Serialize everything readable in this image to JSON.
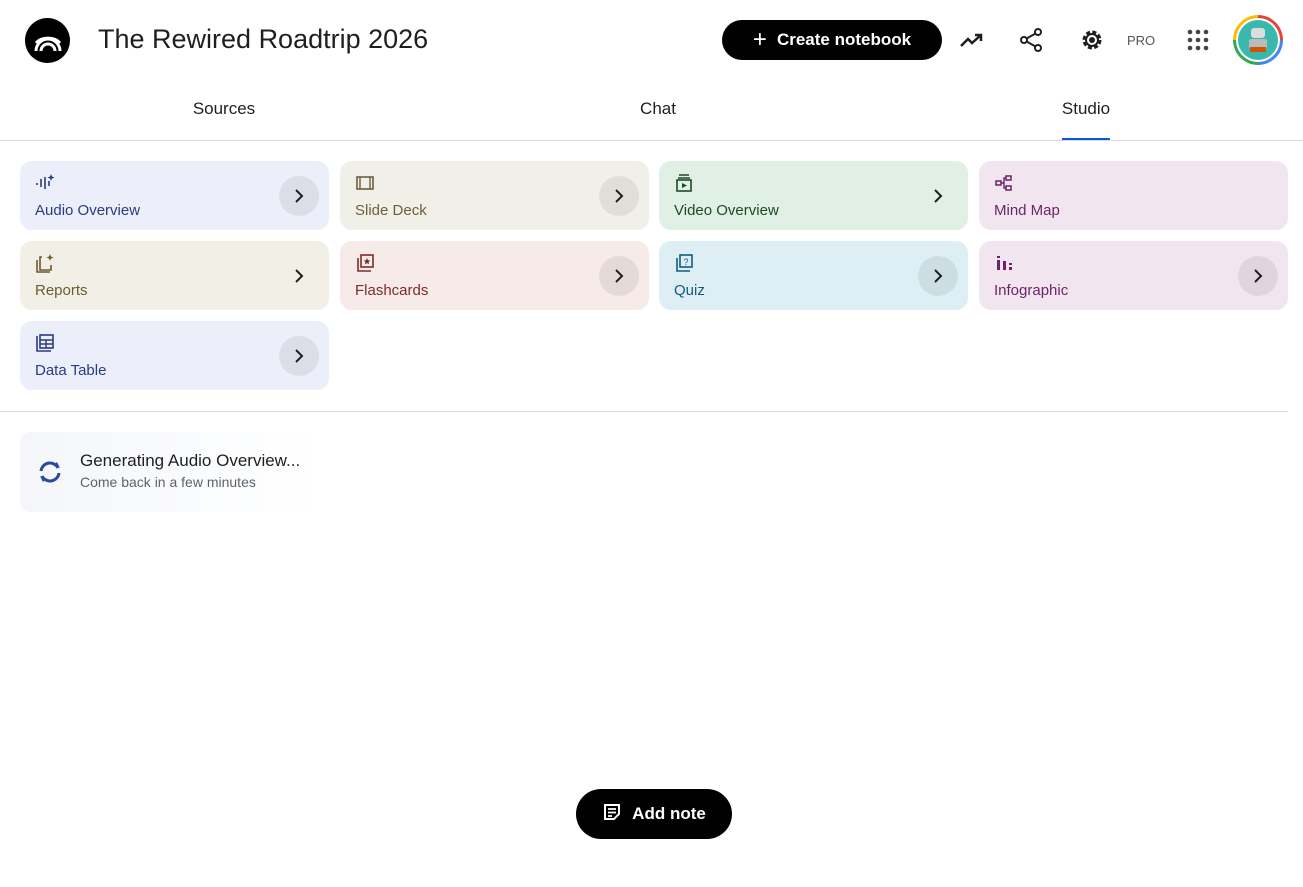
{
  "header": {
    "title": "The Rewired Roadtrip 2026",
    "create_label": "Create notebook",
    "pro_label": "PRO"
  },
  "tabs": [
    {
      "label": "Sources"
    },
    {
      "label": "Chat"
    },
    {
      "label": "Studio",
      "active": true
    }
  ],
  "studio": {
    "cards": [
      {
        "label": "Audio Overview",
        "icon": "audio-waveform-sparkle-icon",
        "bg": "#eceef9",
        "fg": "#2a3d7c"
      },
      {
        "label": "Slide Deck",
        "icon": "slides-icon",
        "bg": "#f1f0e8",
        "fg": "#6e5f3c"
      },
      {
        "label": "Video Overview",
        "icon": "video-library-icon",
        "bg": "#e1f0e4",
        "fg": "#1d4a26"
      },
      {
        "label": "Mind Map",
        "icon": "mind-map-icon",
        "bg": "#f1e6f0",
        "fg": "#6d2466"
      },
      {
        "label": "Reports",
        "icon": "report-sparkle-icon",
        "bg": "#f1efe6",
        "fg": "#6d5a2f"
      },
      {
        "label": "Flashcards",
        "icon": "flashcards-icon",
        "bg": "#f6ebe9",
        "fg": "#7c2c2c"
      },
      {
        "label": "Quiz",
        "icon": "quiz-icon",
        "bg": "#ddeff5",
        "fg": "#125c7a"
      },
      {
        "label": "Infographic",
        "icon": "infographic-icon",
        "bg": "#f1e6f0",
        "fg": "#6d2466"
      },
      {
        "label": "Data Table",
        "icon": "data-table-icon",
        "bg": "#eceef9",
        "fg": "#2a3d7c"
      }
    ]
  },
  "generating": {
    "title": "Generating Audio Overview...",
    "subtitle": "Come back in a few minutes",
    "icon": "sync-icon"
  },
  "add_note_label": "Add note"
}
